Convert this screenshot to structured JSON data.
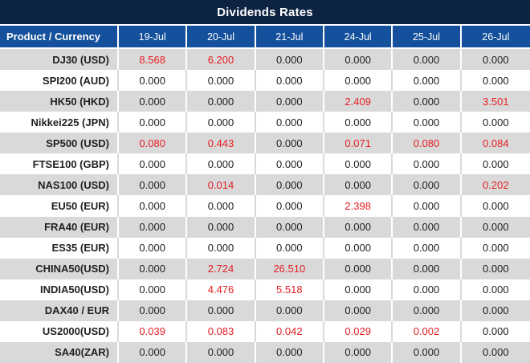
{
  "title": "Dividends Rates",
  "colors": {
    "title_bg": "#0d2342",
    "header_bg": "#14509b",
    "row_alt_bg": "#d9d9d9",
    "row_bg": "#ffffff",
    "highlight_red": "#e61e23",
    "text": "#212121",
    "header_text": "#ffffff"
  },
  "table": {
    "product_header": "Product / Currency",
    "date_headers": [
      "19-Jul",
      "20-Jul",
      "21-Jul",
      "24-Jul",
      "25-Jul",
      "26-Jul"
    ],
    "rows": [
      {
        "product": "DJ30 (USD)",
        "values": [
          "8.568",
          "6.200",
          "0.000",
          "0.000",
          "0.000",
          "0.000"
        ],
        "red": [
          true,
          true,
          false,
          false,
          false,
          false
        ]
      },
      {
        "product": "SPI200 (AUD)",
        "values": [
          "0.000",
          "0.000",
          "0.000",
          "0.000",
          "0.000",
          "0.000"
        ],
        "red": [
          false,
          false,
          false,
          false,
          false,
          false
        ]
      },
      {
        "product": "HK50 (HKD)",
        "values": [
          "0.000",
          "0.000",
          "0.000",
          "2.409",
          "0.000",
          "3.501"
        ],
        "red": [
          false,
          false,
          false,
          true,
          false,
          true
        ]
      },
      {
        "product": "Nikkei225 (JPN)",
        "values": [
          "0.000",
          "0.000",
          "0.000",
          "0.000",
          "0.000",
          "0.000"
        ],
        "red": [
          false,
          false,
          false,
          false,
          false,
          false
        ]
      },
      {
        "product": "SP500 (USD)",
        "values": [
          "0.080",
          "0.443",
          "0.000",
          "0.071",
          "0.080",
          "0.084"
        ],
        "red": [
          true,
          true,
          false,
          true,
          true,
          true
        ]
      },
      {
        "product": "FTSE100 (GBP)",
        "values": [
          "0.000",
          "0.000",
          "0.000",
          "0.000",
          "0.000",
          "0.000"
        ],
        "red": [
          false,
          false,
          false,
          false,
          false,
          false
        ]
      },
      {
        "product": "NAS100 (USD)",
        "values": [
          "0.000",
          "0.014",
          "0.000",
          "0.000",
          "0.000",
          "0.202"
        ],
        "red": [
          false,
          true,
          false,
          false,
          false,
          true
        ]
      },
      {
        "product": "EU50 (EUR)",
        "values": [
          "0.000",
          "0.000",
          "0.000",
          "2.398",
          "0.000",
          "0.000"
        ],
        "red": [
          false,
          false,
          false,
          true,
          false,
          false
        ]
      },
      {
        "product": "FRA40 (EUR)",
        "values": [
          "0.000",
          "0.000",
          "0.000",
          "0.000",
          "0.000",
          "0.000"
        ],
        "red": [
          false,
          false,
          false,
          false,
          false,
          false
        ]
      },
      {
        "product": "ES35 (EUR)",
        "values": [
          "0.000",
          "0.000",
          "0.000",
          "0.000",
          "0.000",
          "0.000"
        ],
        "red": [
          false,
          false,
          false,
          false,
          false,
          false
        ]
      },
      {
        "product": "CHINA50(USD)",
        "values": [
          "0.000",
          "2.724",
          "26.510",
          "0.000",
          "0.000",
          "0.000"
        ],
        "red": [
          false,
          true,
          true,
          false,
          false,
          false
        ]
      },
      {
        "product": "INDIA50(USD)",
        "values": [
          "0.000",
          "4.476",
          "5.518",
          "0.000",
          "0.000",
          "0.000"
        ],
        "red": [
          false,
          true,
          true,
          false,
          false,
          false
        ]
      },
      {
        "product": "DAX40 / EUR",
        "values": [
          "0.000",
          "0.000",
          "0.000",
          "0.000",
          "0.000",
          "0.000"
        ],
        "red": [
          false,
          false,
          false,
          false,
          false,
          false
        ]
      },
      {
        "product": "US2000(USD)",
        "values": [
          "0.039",
          "0.083",
          "0.042",
          "0.029",
          "0.002",
          "0.000"
        ],
        "red": [
          true,
          true,
          true,
          true,
          true,
          false
        ]
      },
      {
        "product": "SA40(ZAR)",
        "values": [
          "0.000",
          "0.000",
          "0.000",
          "0.000",
          "0.000",
          "0.000"
        ],
        "red": [
          false,
          false,
          false,
          false,
          false,
          false
        ]
      }
    ]
  }
}
